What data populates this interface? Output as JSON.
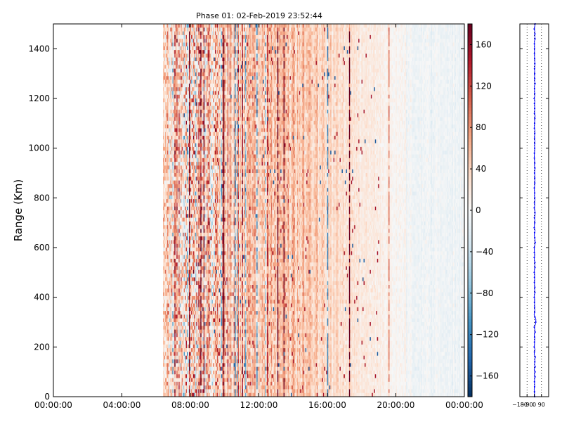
{
  "figure": {
    "title": "Phase 01: 02-Feb-2019 23:52:44"
  },
  "chart_data": [
    {
      "type": "heatmap",
      "title": "Phase 01: 02-Feb-2019 23:52:44",
      "xlabel": "",
      "ylabel": "Range (Km)",
      "x_ticks": [
        "00:00:00",
        "04:00:00",
        "08:00:00",
        "12:00:00",
        "16:00:00",
        "20:00:00",
        "00:00:00"
      ],
      "x_range_hours": [
        0,
        24
      ],
      "y_ticks": [
        0,
        200,
        400,
        600,
        800,
        1000,
        1200,
        1400
      ],
      "ylim": [
        0,
        1500
      ],
      "data_start_hour": 6.4,
      "colorbar": {
        "colormap": "RdBu_r",
        "ticks": [
          -160,
          -120,
          -80,
          -40,
          0,
          40,
          80,
          120,
          160
        ],
        "tick_labels": [
          "−160",
          "−120",
          "−80",
          "−40",
          "0",
          "40",
          "80",
          "120",
          "160"
        ],
        "range": [
          -180,
          180
        ]
      },
      "phase_profile_hint": [
        {
          "hour": 6.4,
          "mean": 20,
          "spread": 60
        },
        {
          "hour": 7.0,
          "mean": 30,
          "spread": 100
        },
        {
          "hour": 8.0,
          "mean": 40,
          "spread": 130
        },
        {
          "hour": 9.0,
          "mean": 45,
          "spread": 120
        },
        {
          "hour": 10.0,
          "mean": 50,
          "spread": 70
        },
        {
          "hour": 12.0,
          "mean": 55,
          "spread": 55
        },
        {
          "hour": 14.0,
          "mean": 50,
          "spread": 45
        },
        {
          "hour": 16.0,
          "mean": 35,
          "spread": 30
        },
        {
          "hour": 18.0,
          "mean": 20,
          "spread": 20
        },
        {
          "hour": 20.0,
          "mean": 5,
          "spread": 15
        },
        {
          "hour": 21.0,
          "mean": -5,
          "spread": 15
        },
        {
          "hour": 24.0,
          "mean": -10,
          "spread": 12
        }
      ]
    },
    {
      "type": "line",
      "title": "",
      "xlabel": "",
      "ylabel": "",
      "x_tick_labels": [
        "−180",
        "−90",
        "0",
        "90"
      ],
      "x_ticks": [
        -180,
        -90,
        0,
        90
      ],
      "xlim": [
        -180,
        180
      ],
      "ylim": [
        0,
        1500
      ],
      "grid_x": [
        -90,
        0,
        90
      ],
      "line_color": "#0000ff",
      "profile_mean": 5,
      "profile_jitter": 12
    }
  ]
}
